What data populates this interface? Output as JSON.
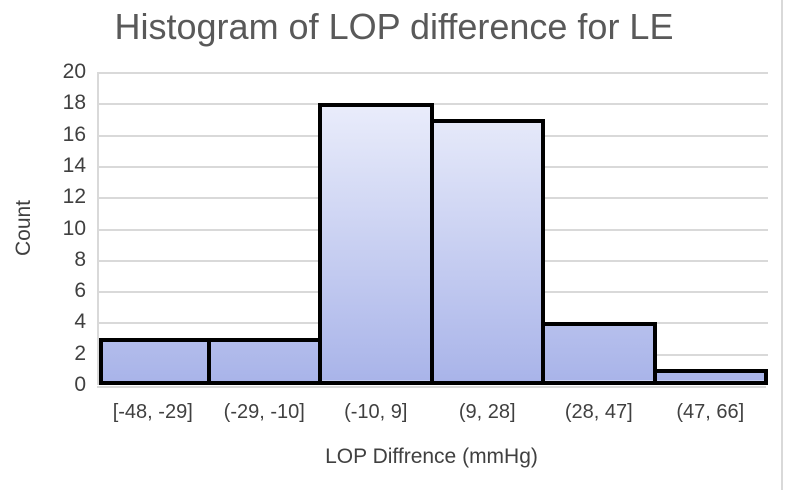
{
  "chart_data": {
    "type": "bar",
    "title": "Histogram of LOP difference for LE",
    "categories": [
      "[-48, -29]",
      "(-29, -10]",
      "(-10, 9]",
      "(9, 28]",
      "(28, 47]",
      "(47, 66]"
    ],
    "values": [
      3,
      3,
      18,
      17,
      4,
      1
    ],
    "xlabel": "LOP Diffrence (mmHg)",
    "ylabel": "Count",
    "ylim": [
      0,
      20
    ],
    "yticks": [
      0,
      2,
      4,
      6,
      8,
      10,
      12,
      14,
      16,
      18,
      20
    ],
    "grid": true,
    "legend": false,
    "bar_gap": 0,
    "colors": {
      "bar_gradient_top": "#f2f4fd",
      "bar_gradient_bottom": "#a9b4e9",
      "bar_border": "#000000",
      "gridline": "#d9d9d9",
      "title_text": "#595959",
      "axis_text": "#404040",
      "background": "#ffffff"
    }
  }
}
